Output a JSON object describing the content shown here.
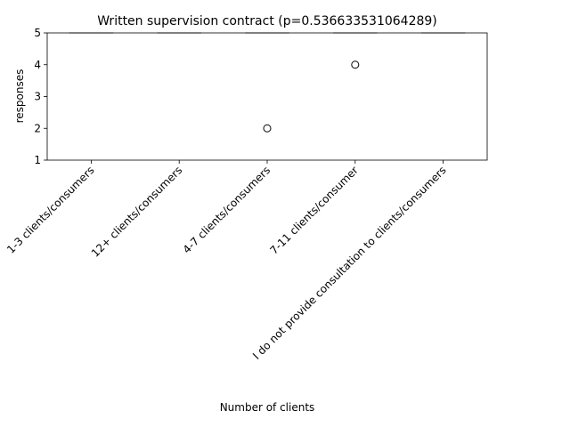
{
  "chart_data": {
    "type": "box",
    "title": "Written supervision contract (p=0.536633531064289)",
    "xlabel": "Number of clients",
    "ylabel": "responses",
    "ylim": [
      1,
      5
    ],
    "yticks": [
      1,
      2,
      3,
      4,
      5
    ],
    "categories": [
      "1-3 clients/consumers",
      "12+ clients/consumers",
      "4-7 clients/consumers",
      "7-11 clients/consumer",
      "I do not provide consultation to clients/consumers"
    ],
    "boxes": [
      {
        "category": "1-3 clients/consumers",
        "whisker_low": 5,
        "q1": 5,
        "median": 5,
        "q3": 5,
        "whisker_high": 5,
        "outliers": []
      },
      {
        "category": "12+ clients/consumers",
        "whisker_low": 5,
        "q1": 5,
        "median": 5,
        "q3": 5,
        "whisker_high": 5,
        "outliers": []
      },
      {
        "category": "4-7 clients/consumers",
        "whisker_low": 5,
        "q1": 5,
        "median": 5,
        "q3": 5,
        "whisker_high": 5,
        "outliers": [
          2
        ]
      },
      {
        "category": "7-11 clients/consumer",
        "whisker_low": 5,
        "q1": 5,
        "median": 5,
        "q3": 5,
        "whisker_high": 5,
        "outliers": [
          4
        ]
      },
      {
        "category": "I do not provide consultation to clients/consumers",
        "whisker_low": 5,
        "q1": 5,
        "median": 5,
        "q3": 5,
        "whisker_high": 5,
        "outliers": []
      }
    ],
    "grid": false,
    "legend": "none"
  }
}
